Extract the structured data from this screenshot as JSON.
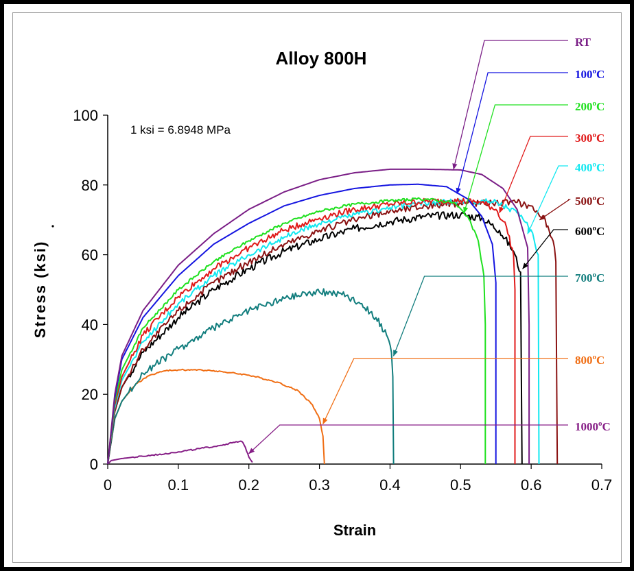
{
  "chart_data": {
    "type": "line",
    "title": "Alloy 800H",
    "xlabel": "Strain",
    "ylabel": "Stress (ksi)",
    "note": "1 ksi = 6.8948 MPa",
    "xlim": [
      0,
      0.7
    ],
    "ylim": [
      0,
      100
    ],
    "x_ticks": [
      "0",
      "0.1",
      "0.2",
      "0.3",
      "0.4",
      "0.5",
      "0.6",
      "0.7"
    ],
    "y_ticks": [
      "0",
      "20",
      "40",
      "60",
      "80",
      "100"
    ],
    "grid": false,
    "legend": "right, labels with arrows",
    "series": [
      {
        "name": "RT",
        "label_main": "RT",
        "label_sup": "",
        "label_tail": "",
        "color": "#7a1e86",
        "noise": 0,
        "points": [
          [
            0,
            0
          ],
          [
            0.01,
            20
          ],
          [
            0.02,
            31
          ],
          [
            0.05,
            44
          ],
          [
            0.1,
            57
          ],
          [
            0.15,
            66
          ],
          [
            0.2,
            73
          ],
          [
            0.25,
            78
          ],
          [
            0.3,
            81.5
          ],
          [
            0.35,
            83.5
          ],
          [
            0.4,
            84.5
          ],
          [
            0.45,
            84.5
          ],
          [
            0.5,
            84.3
          ],
          [
            0.53,
            83
          ],
          [
            0.56,
            79
          ],
          [
            0.58,
            73
          ],
          [
            0.595,
            62
          ],
          [
            0.597,
            40
          ],
          [
            0.597,
            0
          ]
        ],
        "arrow_to": [
          0.49,
          84.5
        ]
      },
      {
        "name": "100°C",
        "label_main": "100",
        "label_sup": "o",
        "label_tail": "C",
        "color": "#1414e0",
        "noise": 0,
        "points": [
          [
            0,
            0
          ],
          [
            0.01,
            19
          ],
          [
            0.02,
            30
          ],
          [
            0.05,
            42
          ],
          [
            0.1,
            54
          ],
          [
            0.15,
            63
          ],
          [
            0.2,
            69
          ],
          [
            0.25,
            74
          ],
          [
            0.3,
            77
          ],
          [
            0.35,
            79
          ],
          [
            0.4,
            80
          ],
          [
            0.44,
            80.2
          ],
          [
            0.48,
            79.5
          ],
          [
            0.51,
            76
          ],
          [
            0.53,
            71
          ],
          [
            0.545,
            63
          ],
          [
            0.55,
            52
          ],
          [
            0.55,
            0
          ]
        ],
        "arrow_to": [
          0.495,
          77.5
        ]
      },
      {
        "name": "200°C",
        "label_main": "200",
        "label_sup": "o",
        "label_tail": "C",
        "color": "#1ee01e",
        "noise": 0.4,
        "points": [
          [
            0,
            0
          ],
          [
            0.01,
            18
          ],
          [
            0.02,
            27
          ],
          [
            0.05,
            39
          ],
          [
            0.1,
            50
          ],
          [
            0.15,
            58
          ],
          [
            0.2,
            64
          ],
          [
            0.25,
            69
          ],
          [
            0.3,
            72.5
          ],
          [
            0.35,
            74.5
          ],
          [
            0.4,
            75.5
          ],
          [
            0.45,
            76
          ],
          [
            0.49,
            75
          ],
          [
            0.51,
            71
          ],
          [
            0.525,
            64
          ],
          [
            0.533,
            54
          ],
          [
            0.535,
            40
          ],
          [
            0.535,
            0
          ]
        ],
        "arrow_to": [
          0.505,
          72
        ]
      },
      {
        "name": "300°C",
        "label_main": "300",
        "label_sup": "o",
        "label_tail": "C",
        "color": "#e01a1a",
        "noise": 0.9,
        "points": [
          [
            0,
            0
          ],
          [
            0.01,
            17
          ],
          [
            0.02,
            25
          ],
          [
            0.05,
            37
          ],
          [
            0.1,
            48
          ],
          [
            0.15,
            56
          ],
          [
            0.2,
            62
          ],
          [
            0.25,
            67
          ],
          [
            0.3,
            70.5
          ],
          [
            0.35,
            73
          ],
          [
            0.4,
            74.5
          ],
          [
            0.45,
            75.3
          ],
          [
            0.5,
            75.5
          ],
          [
            0.53,
            75
          ],
          [
            0.55,
            73
          ],
          [
            0.565,
            68
          ],
          [
            0.575,
            60
          ],
          [
            0.577,
            50
          ],
          [
            0.577,
            0
          ]
        ],
        "arrow_to": [
          0.555,
          72
        ]
      },
      {
        "name": "400°C",
        "label_main": "400",
        "label_sup": "o",
        "label_tail": "C",
        "color": "#11e8f0",
        "noise": 0.8,
        "points": [
          [
            0,
            0
          ],
          [
            0.01,
            16
          ],
          [
            0.02,
            24
          ],
          [
            0.05,
            35
          ],
          [
            0.1,
            46
          ],
          [
            0.15,
            54
          ],
          [
            0.2,
            60
          ],
          [
            0.25,
            65
          ],
          [
            0.3,
            69
          ],
          [
            0.35,
            71.5
          ],
          [
            0.4,
            73.5
          ],
          [
            0.45,
            74.8
          ],
          [
            0.5,
            75.3
          ],
          [
            0.55,
            75.3
          ],
          [
            0.58,
            72
          ],
          [
            0.6,
            67
          ],
          [
            0.61,
            60
          ],
          [
            0.611,
            0
          ]
        ],
        "arrow_to": [
          0.595,
          66
        ]
      },
      {
        "name": "500°C",
        "label_main": "500",
        "label_sup": "o",
        "label_tail": "C",
        "color": "#8a1212",
        "noise": 1.0,
        "points": [
          [
            0,
            0
          ],
          [
            0.01,
            15
          ],
          [
            0.02,
            22
          ],
          [
            0.05,
            33
          ],
          [
            0.1,
            44
          ],
          [
            0.15,
            52
          ],
          [
            0.2,
            58
          ],
          [
            0.25,
            63
          ],
          [
            0.3,
            67
          ],
          [
            0.35,
            70
          ],
          [
            0.4,
            72.5
          ],
          [
            0.45,
            74
          ],
          [
            0.5,
            74.8
          ],
          [
            0.55,
            75
          ],
          [
            0.58,
            75
          ],
          [
            0.6,
            74
          ],
          [
            0.62,
            70
          ],
          [
            0.633,
            62
          ],
          [
            0.635,
            58
          ],
          [
            0.637,
            0
          ]
        ],
        "arrow_to": [
          0.612,
          70
        ]
      },
      {
        "name": "600°C",
        "label_main": "600",
        "label_sup": "o",
        "label_tail": "C",
        "color": "#000000",
        "noise": 1.1,
        "points": [
          [
            0,
            0
          ],
          [
            0.01,
            15
          ],
          [
            0.02,
            22
          ],
          [
            0.05,
            32
          ],
          [
            0.1,
            42
          ],
          [
            0.15,
            50
          ],
          [
            0.2,
            56
          ],
          [
            0.25,
            61
          ],
          [
            0.3,
            64.5
          ],
          [
            0.35,
            67.5
          ],
          [
            0.4,
            69.5
          ],
          [
            0.45,
            71
          ],
          [
            0.5,
            71.5
          ],
          [
            0.53,
            70.5
          ],
          [
            0.555,
            67
          ],
          [
            0.575,
            61
          ],
          [
            0.585,
            55
          ],
          [
            0.587,
            0
          ]
        ],
        "arrow_to": [
          0.588,
          56
        ]
      },
      {
        "name": "700°C",
        "label_main": "700",
        "label_sup": "o",
        "label_tail": "C",
        "color": "#117d7d",
        "noise": 1.0,
        "points": [
          [
            0,
            0
          ],
          [
            0.01,
            13
          ],
          [
            0.02,
            18
          ],
          [
            0.05,
            26
          ],
          [
            0.1,
            33
          ],
          [
            0.15,
            39
          ],
          [
            0.2,
            44
          ],
          [
            0.25,
            47.5
          ],
          [
            0.28,
            49
          ],
          [
            0.3,
            49.3
          ],
          [
            0.33,
            49
          ],
          [
            0.36,
            46
          ],
          [
            0.38,
            42
          ],
          [
            0.395,
            37
          ],
          [
            0.402,
            32
          ],
          [
            0.404,
            25
          ],
          [
            0.405,
            0
          ]
        ],
        "arrow_to": [
          0.405,
          31
        ]
      },
      {
        "name": "800°C",
        "label_main": "800",
        "label_sup": "o",
        "label_tail": "C",
        "color": "#f06e14",
        "noise": 0.2,
        "points": [
          [
            0,
            0
          ],
          [
            0.01,
            13
          ],
          [
            0.02,
            18
          ],
          [
            0.04,
            23
          ],
          [
            0.06,
            25.5
          ],
          [
            0.08,
            26.7
          ],
          [
            0.1,
            27
          ],
          [
            0.12,
            27
          ],
          [
            0.15,
            26.8
          ],
          [
            0.2,
            25.5
          ],
          [
            0.24,
            23.5
          ],
          [
            0.27,
            21
          ],
          [
            0.29,
            17
          ],
          [
            0.3,
            13
          ],
          [
            0.305,
            8
          ],
          [
            0.307,
            0
          ]
        ],
        "arrow_to": [
          0.305,
          11.5
        ]
      },
      {
        "name": "1000°C",
        "label_main": "1000",
        "label_sup": "o",
        "label_tail": "C",
        "color": "#861e86",
        "noise": 0.2,
        "points": [
          [
            0,
            0
          ],
          [
            0.005,
            1
          ],
          [
            0.02,
            1.6
          ],
          [
            0.05,
            2.2
          ],
          [
            0.1,
            3.5
          ],
          [
            0.15,
            5
          ],
          [
            0.18,
            6.2
          ],
          [
            0.19,
            6.5
          ],
          [
            0.195,
            4.8
          ],
          [
            0.2,
            2
          ],
          [
            0.205,
            0.5
          ]
        ],
        "arrow_to": [
          0.2,
          3
        ]
      }
    ]
  }
}
